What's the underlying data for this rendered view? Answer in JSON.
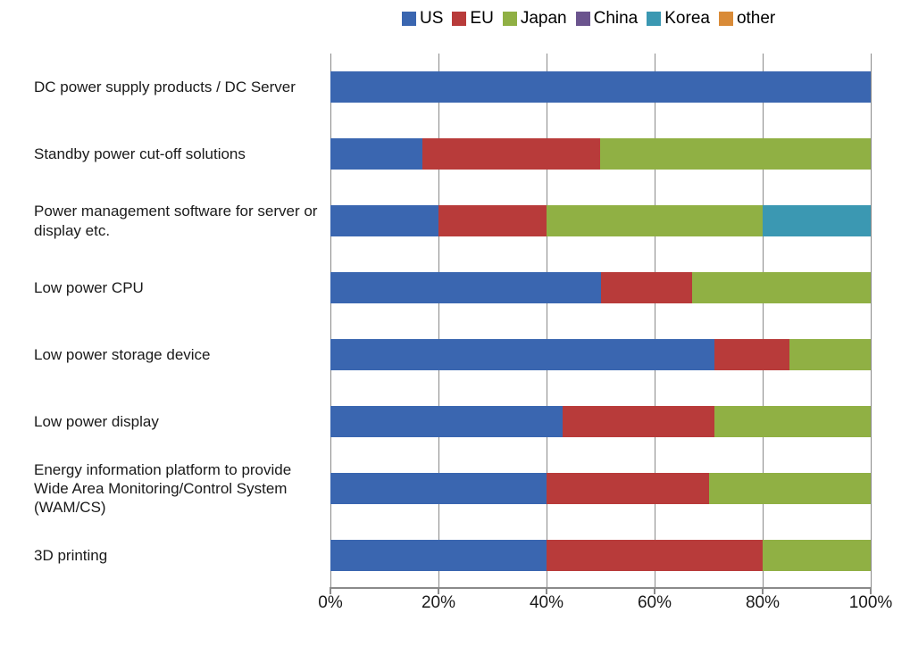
{
  "chart": {
    "type": "stacked-bar-horizontal-100pct",
    "background_color": "#ffffff",
    "grid_color": "#8a8a8a",
    "label_fontsize": 17,
    "axis_fontsize": 19,
    "legend_fontsize": 19,
    "xlim": [
      0,
      100
    ],
    "xticks": [
      0,
      20,
      40,
      60,
      80,
      100
    ],
    "xtick_labels": [
      "0%",
      "20%",
      "40%",
      "60%",
      "80%",
      "100%"
    ],
    "series": [
      {
        "name": "US",
        "color": "#3a66b0"
      },
      {
        "name": "EU",
        "color": "#b83b3a"
      },
      {
        "name": "Japan",
        "color": "#90b044"
      },
      {
        "name": "China",
        "color": "#6b548e"
      },
      {
        "name": "Korea",
        "color": "#3b98b2"
      },
      {
        "name": "other",
        "color": "#d98b38"
      }
    ],
    "categories": [
      {
        "label": "DC power supply products / DC Server",
        "values": {
          "US": 100,
          "EU": 0,
          "Japan": 0,
          "China": 0,
          "Korea": 0,
          "other": 0
        }
      },
      {
        "label": "Standby power cut-off solutions",
        "values": {
          "US": 17,
          "EU": 33,
          "Japan": 50,
          "China": 0,
          "Korea": 0,
          "other": 0
        }
      },
      {
        "label": "Power management software for server or display etc.",
        "values": {
          "US": 20,
          "EU": 20,
          "Japan": 40,
          "China": 0,
          "Korea": 20,
          "other": 0
        }
      },
      {
        "label": "Low power CPU",
        "values": {
          "US": 50,
          "EU": 17,
          "Japan": 33,
          "China": 0,
          "Korea": 0,
          "other": 0
        }
      },
      {
        "label": "Low power storage device",
        "values": {
          "US": 71,
          "EU": 14,
          "Japan": 15,
          "China": 0,
          "Korea": 0,
          "other": 0
        }
      },
      {
        "label": "Low power display",
        "values": {
          "US": 43,
          "EU": 28,
          "Japan": 29,
          "China": 0,
          "Korea": 0,
          "other": 0
        }
      },
      {
        "label": "Energy information platform to provide Wide Area Monitoring/Control System (WAM/CS)",
        "values": {
          "US": 40,
          "EU": 30,
          "Japan": 30,
          "China": 0,
          "Korea": 0,
          "other": 0
        }
      },
      {
        "label": "3D printing",
        "values": {
          "US": 40,
          "EU": 40,
          "Japan": 20,
          "China": 0,
          "Korea": 0,
          "other": 0
        }
      }
    ]
  }
}
